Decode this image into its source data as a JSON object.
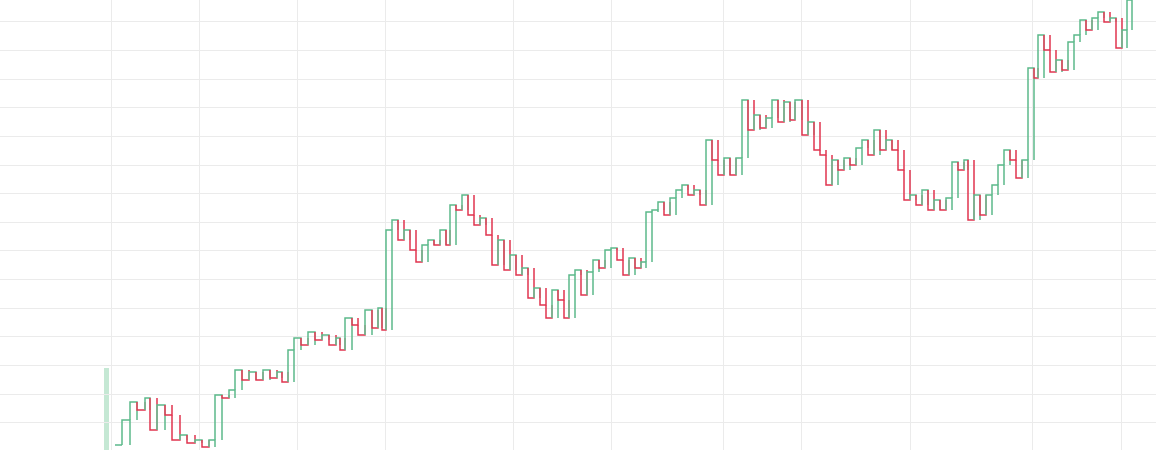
{
  "chart_data": {
    "type": "step",
    "x": [
      115,
      122,
      130,
      137,
      145,
      150,
      157,
      165,
      172,
      180,
      187,
      195,
      202,
      209,
      215,
      222,
      229,
      235,
      242,
      249,
      256,
      263,
      270,
      277,
      282,
      288,
      294,
      301,
      308,
      315,
      322,
      329,
      336,
      340,
      345,
      352,
      358,
      365,
      372,
      378,
      382,
      386,
      392,
      398,
      404,
      410,
      416,
      422,
      428,
      434,
      440,
      446,
      450,
      456,
      462,
      468,
      474,
      480,
      486,
      492,
      498,
      504,
      510,
      516,
      522,
      528,
      534,
      540,
      546,
      552,
      558,
      564,
      569,
      575,
      581,
      587,
      593,
      599,
      605,
      611,
      617,
      623,
      629,
      635,
      641,
      646,
      652,
      658,
      664,
      670,
      676,
      682,
      688,
      694,
      700,
      706,
      712,
      718,
      724,
      730,
      736,
      742,
      748,
      754,
      760,
      766,
      772,
      778,
      784,
      790,
      795,
      802,
      808,
      814,
      820,
      826,
      832,
      838,
      844,
      850,
      856,
      862,
      868,
      874,
      880,
      886,
      892,
      898,
      904,
      910,
      916,
      922,
      928,
      934,
      940,
      946,
      952,
      958,
      964,
      968,
      974,
      980,
      986,
      992,
      998,
      1004,
      1010,
      1016,
      1022,
      1028,
      1034,
      1038,
      1044,
      1050,
      1056,
      1062,
      1068,
      1074,
      1080,
      1086,
      1092,
      1098,
      1104,
      1110,
      1116,
      1122,
      1127
    ],
    "values": [
      5,
      30,
      48,
      40,
      52,
      20,
      45,
      35,
      10,
      15,
      7,
      10,
      3,
      10,
      55,
      52,
      60,
      80,
      70,
      78,
      70,
      80,
      72,
      78,
      68,
      100,
      112,
      105,
      118,
      110,
      115,
      105,
      112,
      100,
      132,
      125,
      115,
      140,
      122,
      142,
      120,
      220,
      230,
      210,
      220,
      200,
      188,
      205,
      210,
      205,
      220,
      205,
      245,
      240,
      255,
      235,
      225,
      232,
      215,
      185,
      210,
      180,
      195,
      175,
      182,
      152,
      162,
      145,
      132,
      160,
      150,
      132,
      175,
      180,
      155,
      178,
      190,
      182,
      200,
      202,
      190,
      175,
      192,
      182,
      188,
      238,
      240,
      248,
      235,
      252,
      260,
      265,
      255,
      260,
      245,
      310,
      290,
      275,
      292,
      275,
      292,
      350,
      320,
      335,
      322,
      332,
      350,
      328,
      348,
      330,
      350,
      315,
      328,
      300,
      295,
      265,
      290,
      280,
      292,
      285,
      302,
      310,
      295,
      320,
      300,
      310,
      300,
      280,
      250,
      255,
      245,
      260,
      240,
      250,
      240,
      252,
      288,
      280,
      290,
      230,
      255,
      235,
      255,
      265,
      285,
      300,
      290,
      272,
      290,
      382,
      372,
      415,
      400,
      378,
      390,
      380,
      408,
      415,
      430,
      420,
      432,
      438,
      428,
      432,
      402,
      420,
      450
    ],
    "up_color": "#5bb98a",
    "down_color": "#e0344f",
    "xlim": [
      0,
      1156
    ],
    "ylim": [
      0,
      450
    ],
    "xticks": [
      111,
      199,
      297,
      385,
      513,
      611,
      723,
      801,
      910,
      1032,
      1121
    ],
    "yticks": [
      28,
      56,
      85,
      114,
      142,
      171,
      200,
      228,
      257,
      285,
      314,
      343,
      371,
      400,
      429
    ],
    "grid": true
  }
}
